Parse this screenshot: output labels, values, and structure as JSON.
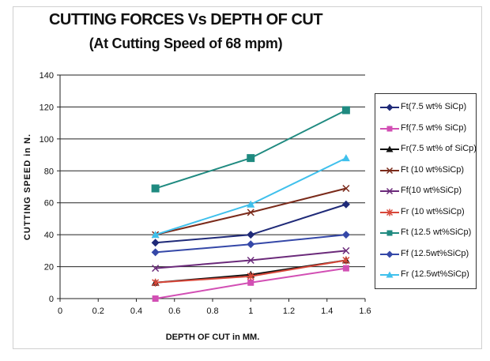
{
  "chart_data": {
    "type": "line",
    "title": "CUTTING FORCES Vs DEPTH OF CUT",
    "subtitle": "(At Cutting Speed of 68 mpm)",
    "xlabel": "DEPTH OF CUT in MM.",
    "ylabel": "CUTTING SPEED in N.",
    "xlim": [
      0,
      1.6
    ],
    "ylim": [
      0,
      140
    ],
    "xticks": [
      "0",
      "0.2",
      "0.4",
      "0.6",
      "0.8",
      "1",
      "1.2",
      "1.4",
      "1.6"
    ],
    "yticks": [
      "0",
      "20",
      "40",
      "60",
      "80",
      "100",
      "120",
      "140"
    ],
    "grid": "horizontal",
    "legend_position": "right",
    "x": [
      0.5,
      1.0,
      1.5
    ],
    "series": [
      {
        "name": "Ft(7.5 wt% SiCp)",
        "values": [
          35,
          40,
          59
        ],
        "color": "#1f2a78",
        "marker": "diamond"
      },
      {
        "name": "Ff(7.5 wt% SiCp)",
        "values": [
          0,
          10,
          19
        ],
        "color": "#d24fb4",
        "marker": "square"
      },
      {
        "name": "Fr(7.5 wt% of SiCp)",
        "values": [
          10,
          15,
          24
        ],
        "color": "#111111",
        "marker": "triangle"
      },
      {
        "name": "Ft (10 wt%SiCp)",
        "values": [
          40,
          54,
          69
        ],
        "color": "#7a2a1a",
        "marker": "x"
      },
      {
        "name": "Ff(10 wt%SiCp)",
        "values": [
          19,
          24,
          30
        ],
        "color": "#6b2a7a",
        "marker": "x"
      },
      {
        "name": "Fr (10 wt%SiCp)",
        "values": [
          10,
          14,
          24
        ],
        "color": "#d8483a",
        "marker": "star"
      },
      {
        "name": "Ft (12.5 wt%SiCp)",
        "values": [
          69,
          88,
          118
        ],
        "color": "#1f8a80",
        "marker": "square"
      },
      {
        "name": "Ff (12.5wt%SiCp)",
        "values": [
          29,
          34,
          40
        ],
        "color": "#3548a8",
        "marker": "diamond"
      },
      {
        "name": "Fr (12.5wt%SiCp)",
        "values": [
          40,
          59,
          88
        ],
        "color": "#3fc0ec",
        "marker": "triangle"
      }
    ]
  }
}
